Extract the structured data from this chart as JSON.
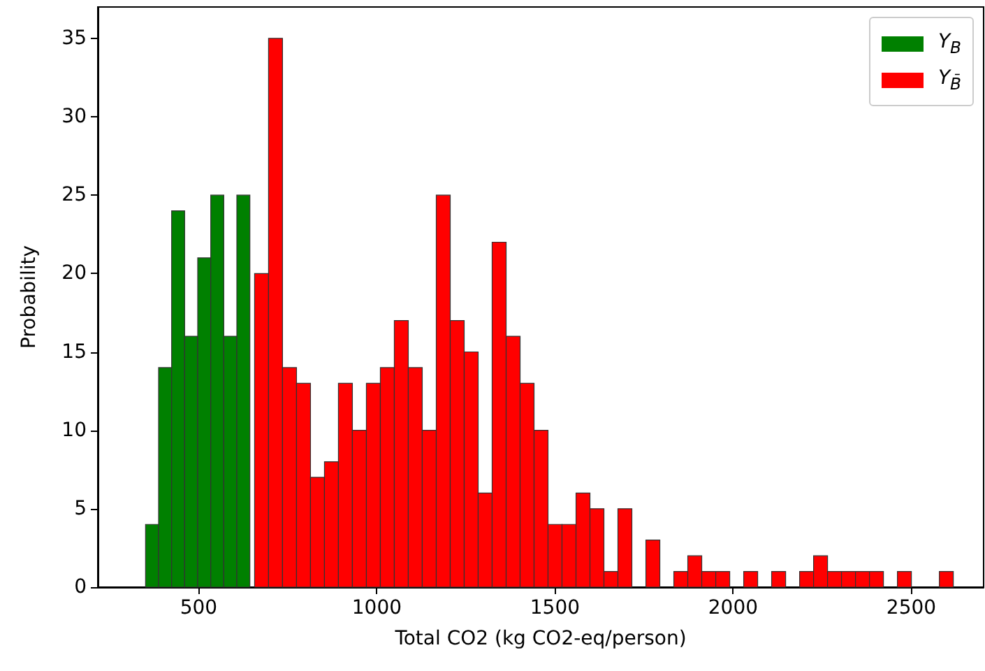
{
  "chart_data": {
    "type": "histogram",
    "xlabel": "Total CO2 (kg CO2-eq/person)",
    "ylabel": "Probability",
    "xlim": [
      217,
      2703
    ],
    "xticks": [
      500,
      1000,
      1500,
      2000,
      2500
    ],
    "ylim": [
      0,
      37
    ],
    "yticks": [
      0,
      5,
      10,
      15,
      20,
      25,
      30,
      35
    ],
    "grid": false,
    "legend": "top right",
    "bins": [
      351,
      387.6,
      424.2,
      460.8,
      497.4,
      534,
      570.6,
      607.2,
      643.8,
      657,
      696.2,
      735.4,
      774.7,
      813.9,
      853.1,
      892.3,
      931.5,
      970.8,
      1010,
      1049.2,
      1088.4,
      1127.6,
      1166.9,
      1206.1,
      1245.3,
      1284.5,
      1323.7,
      1363,
      1402.2,
      1441.4,
      1480.6,
      1519.8,
      1559.1,
      1598.3,
      1637.5,
      1676.7,
      1715.9,
      1755.2,
      1794.4,
      1833.6,
      1872.8,
      1912,
      1951.3,
      1990.5,
      2029.7,
      2068.9,
      2108.1,
      2147.4,
      2186.6,
      2225.8,
      2265,
      2304.2,
      2343.5,
      2382.7,
      2421.9,
      2461.1,
      2500.3,
      2578.8,
      2618
    ],
    "series": [
      {
        "name": "Y$_{B}$",
        "color": "#008000",
        "values": [
          4,
          14,
          24,
          16,
          21,
          25,
          16,
          25,
          null,
          null,
          null,
          null,
          null,
          null,
          null,
          null,
          null,
          null,
          null,
          null,
          null,
          null,
          null,
          null,
          null,
          null,
          null,
          null,
          null,
          null,
          null,
          null,
          null,
          null,
          null,
          null,
          null,
          null,
          null,
          null,
          null,
          null,
          null,
          null,
          null,
          null,
          null,
          null,
          null,
          null,
          null,
          null,
          null,
          null,
          null,
          null,
          null,
          null
        ]
      },
      {
        "name": "Y$_{B̄}$",
        "color": "#ff0000",
        "values": [
          null,
          null,
          null,
          null,
          null,
          null,
          null,
          null,
          null,
          20,
          35,
          14,
          13,
          7,
          8,
          13,
          10,
          13,
          14,
          17,
          14,
          10,
          25,
          17,
          15,
          6,
          22,
          16,
          13,
          10,
          4,
          4,
          6,
          5,
          1,
          5,
          0,
          3,
          0,
          1,
          2,
          1,
          1,
          0,
          1,
          0,
          1,
          0,
          1,
          2,
          1,
          1,
          1,
          1,
          0,
          1,
          0,
          1
        ]
      }
    ]
  }
}
